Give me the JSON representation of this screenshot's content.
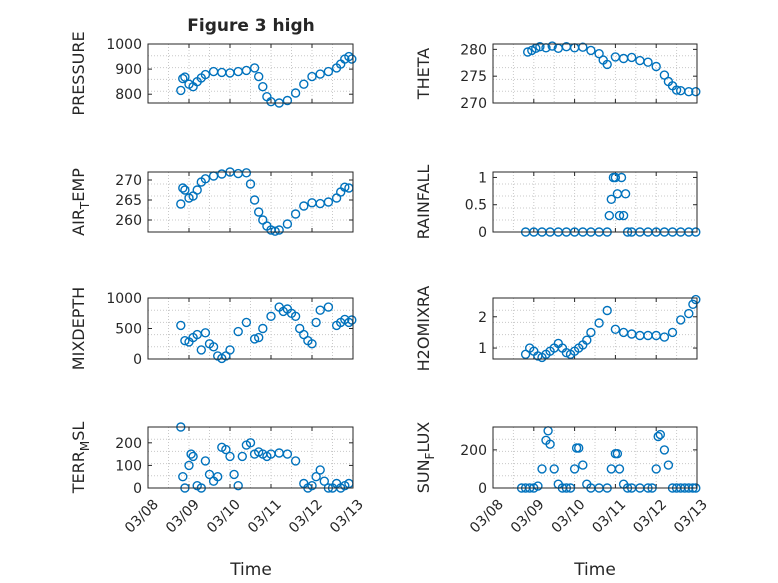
{
  "figure": {
    "title": "Figure 3 high",
    "xlabel": "Time"
  },
  "colors": {
    "series": "#0072bd",
    "axis": "#262626",
    "grid": "#c8c8c8"
  },
  "chart_data": [
    {
      "type": "scatter",
      "ylabel": "PRESSURE",
      "xlim": [
        0,
        5
      ],
      "ylim": [
        765,
        1000
      ],
      "yticks": [
        800,
        900,
        1000
      ],
      "xticks": [],
      "grid": true,
      "x": [
        0.8,
        0.85,
        0.9,
        1.0,
        1.1,
        1.2,
        1.3,
        1.4,
        1.6,
        1.8,
        2.0,
        2.2,
        2.4,
        2.6,
        2.7,
        2.8,
        2.9,
        3.0,
        3.2,
        3.4,
        3.6,
        3.8,
        4.0,
        4.2,
        4.4,
        4.6,
        4.7,
        4.8,
        4.9,
        4.97
      ],
      "y": [
        815,
        862,
        868,
        840,
        830,
        850,
        865,
        878,
        890,
        887,
        885,
        890,
        895,
        905,
        870,
        830,
        790,
        770,
        765,
        775,
        805,
        840,
        870,
        880,
        890,
        905,
        920,
        940,
        950,
        940
      ]
    },
    {
      "type": "scatter",
      "ylabel": "THETA",
      "xlim": [
        0,
        5
      ],
      "ylim": [
        270,
        281
      ],
      "yticks": [
        270,
        275,
        280
      ],
      "xticks": [],
      "grid": true,
      "x": [
        0.85,
        0.95,
        1.05,
        1.15,
        1.3,
        1.45,
        1.6,
        1.8,
        2.0,
        2.2,
        2.4,
        2.6,
        2.7,
        2.8,
        3.0,
        3.2,
        3.4,
        3.6,
        3.8,
        4.0,
        4.2,
        4.3,
        4.4,
        4.5,
        4.6,
        4.8,
        4.97
      ],
      "y": [
        279.5,
        279.8,
        280.2,
        280.5,
        280.3,
        280.6,
        280.2,
        280.5,
        280.3,
        280.4,
        279.8,
        279.2,
        278,
        277.2,
        278.6,
        278.3,
        278.5,
        277.9,
        277.6,
        276.8,
        275.2,
        274.0,
        273.2,
        272.4,
        272.3,
        272.1,
        272.1
      ]
    },
    {
      "type": "scatter",
      "ylabel": "AIR_TEMP",
      "xlim": [
        0,
        5
      ],
      "ylim": [
        257,
        272
      ],
      "yticks": [
        260,
        265,
        270
      ],
      "xticks": [],
      "grid": true,
      "x": [
        0.8,
        0.85,
        0.9,
        1.0,
        1.1,
        1.2,
        1.3,
        1.4,
        1.6,
        1.8,
        2.0,
        2.2,
        2.4,
        2.5,
        2.6,
        2.7,
        2.8,
        2.9,
        3.0,
        3.1,
        3.2,
        3.4,
        3.6,
        3.8,
        4.0,
        4.2,
        4.4,
        4.6,
        4.7,
        4.8,
        4.9
      ],
      "y": [
        264,
        268,
        267.5,
        265.5,
        266,
        267.5,
        269.5,
        270.3,
        271,
        271.5,
        272,
        271.6,
        271.8,
        269,
        265,
        262,
        260,
        258.5,
        257.5,
        257.2,
        257.5,
        259,
        261.5,
        263.5,
        264.3,
        264.1,
        264.5,
        265.5,
        267,
        268.2,
        268
      ]
    },
    {
      "type": "scatter",
      "ylabel": "RAINFALL",
      "xlim": [
        0,
        5
      ],
      "ylim": [
        0,
        1.1
      ],
      "yticks": [
        0,
        0.5,
        1
      ],
      "xticks": [],
      "grid": true,
      "x": [
        0.8,
        1.0,
        1.2,
        1.4,
        1.6,
        1.8,
        2.0,
        2.2,
        2.4,
        2.6,
        2.8,
        2.85,
        2.9,
        2.95,
        3.0,
        3.05,
        3.1,
        3.15,
        3.2,
        3.25,
        3.3,
        3.4,
        3.6,
        3.8,
        4.0,
        4.2,
        4.4,
        4.6,
        4.8,
        4.97
      ],
      "y": [
        0,
        0,
        0,
        0,
        0,
        0,
        0,
        0,
        0,
        0,
        0,
        0.3,
        0.6,
        1.0,
        1.0,
        0.7,
        0.3,
        1.0,
        0.3,
        0.7,
        0,
        0,
        0,
        0,
        0,
        0,
        0,
        0,
        0,
        0
      ]
    },
    {
      "type": "scatter",
      "ylabel": "MIXDEPTH",
      "xlim": [
        0,
        5
      ],
      "ylim": [
        0,
        1000
      ],
      "yticks": [
        0,
        500,
        1000
      ],
      "xticks": [],
      "grid": true,
      "x": [
        0.8,
        0.9,
        1.0,
        1.1,
        1.2,
        1.3,
        1.4,
        1.5,
        1.6,
        1.7,
        1.8,
        1.9,
        2.0,
        2.2,
        2.4,
        2.6,
        2.7,
        2.8,
        3.0,
        3.2,
        3.3,
        3.4,
        3.5,
        3.6,
        3.7,
        3.8,
        3.9,
        4.0,
        4.1,
        4.2,
        4.4,
        4.6,
        4.7,
        4.8,
        4.9,
        4.97
      ],
      "y": [
        550,
        300,
        280,
        350,
        400,
        150,
        430,
        250,
        200,
        50,
        10,
        50,
        150,
        450,
        600,
        330,
        350,
        500,
        700,
        850,
        780,
        820,
        750,
        700,
        500,
        400,
        300,
        250,
        600,
        800,
        850,
        550,
        600,
        650,
        600,
        640
      ]
    },
    {
      "type": "scatter",
      "ylabel": "H2OMIXRA",
      "xlim": [
        0,
        5
      ],
      "ylim": [
        0.65,
        2.6
      ],
      "yticks": [
        1,
        2
      ],
      "xticks": [],
      "grid": true,
      "x": [
        0.8,
        0.9,
        1.0,
        1.1,
        1.2,
        1.3,
        1.4,
        1.5,
        1.6,
        1.7,
        1.8,
        1.9,
        2.0,
        2.1,
        2.2,
        2.3,
        2.4,
        2.6,
        2.8,
        3.0,
        3.2,
        3.4,
        3.6,
        3.8,
        4.0,
        4.2,
        4.4,
        4.6,
        4.8,
        4.9,
        4.97
      ],
      "y": [
        0.8,
        1.0,
        0.9,
        0.75,
        0.7,
        0.8,
        0.9,
        1.0,
        1.15,
        1.0,
        0.85,
        0.8,
        0.9,
        1.0,
        1.1,
        1.25,
        1.5,
        1.8,
        2.2,
        1.6,
        1.5,
        1.45,
        1.4,
        1.4,
        1.4,
        1.35,
        1.5,
        1.9,
        2.1,
        2.4,
        2.55
      ]
    },
    {
      "type": "scatter",
      "ylabel": "TERR_MSL",
      "xlim": [
        0,
        5
      ],
      "ylim": [
        0,
        270
      ],
      "yticks": [
        0,
        100,
        200
      ],
      "xticks": [
        "03/08",
        "03/09",
        "03/10",
        "03/11",
        "03/12",
        "03/13"
      ],
      "grid": true,
      "x": [
        0.8,
        0.85,
        0.9,
        1.0,
        1.05,
        1.1,
        1.2,
        1.3,
        1.4,
        1.5,
        1.6,
        1.7,
        1.8,
        1.9,
        2.0,
        2.1,
        2.2,
        2.3,
        2.4,
        2.5,
        2.6,
        2.7,
        2.8,
        2.9,
        3.0,
        3.2,
        3.4,
        3.6,
        3.8,
        3.9,
        4.0,
        4.1,
        4.2,
        4.3,
        4.4,
        4.5,
        4.6,
        4.7,
        4.8,
        4.9
      ],
      "y": [
        270,
        50,
        0,
        100,
        150,
        140,
        10,
        0,
        120,
        60,
        30,
        50,
        180,
        170,
        140,
        60,
        10,
        140,
        190,
        200,
        150,
        160,
        150,
        140,
        150,
        155,
        150,
        120,
        20,
        0,
        10,
        50,
        80,
        30,
        0,
        0,
        20,
        0,
        10,
        20
      ]
    },
    {
      "type": "scatter",
      "ylabel": "SUN_FLUX",
      "xlim": [
        0,
        5
      ],
      "ylim": [
        0,
        320
      ],
      "yticks": [
        0,
        200
      ],
      "xticks": [
        "03/08",
        "03/09",
        "03/10",
        "03/11",
        "03/12",
        "03/13"
      ],
      "grid": true,
      "x": [
        0.7,
        0.8,
        0.9,
        1.0,
        1.1,
        1.2,
        1.3,
        1.35,
        1.4,
        1.5,
        1.6,
        1.7,
        1.8,
        1.9,
        2.0,
        2.05,
        2.1,
        2.2,
        2.3,
        2.4,
        2.6,
        2.8,
        2.9,
        3.0,
        3.05,
        3.1,
        3.2,
        3.3,
        3.4,
        3.6,
        3.8,
        3.9,
        4.0,
        4.05,
        4.1,
        4.2,
        4.3,
        4.4,
        4.5,
        4.6,
        4.7,
        4.8,
        4.9,
        4.97
      ],
      "y": [
        0,
        0,
        0,
        0,
        10,
        100,
        250,
        300,
        230,
        100,
        20,
        0,
        0,
        0,
        100,
        210,
        210,
        120,
        20,
        0,
        0,
        0,
        100,
        180,
        180,
        100,
        20,
        0,
        0,
        0,
        0,
        0,
        100,
        270,
        280,
        200,
        120,
        0,
        0,
        0,
        0,
        0,
        0,
        0
      ]
    }
  ]
}
